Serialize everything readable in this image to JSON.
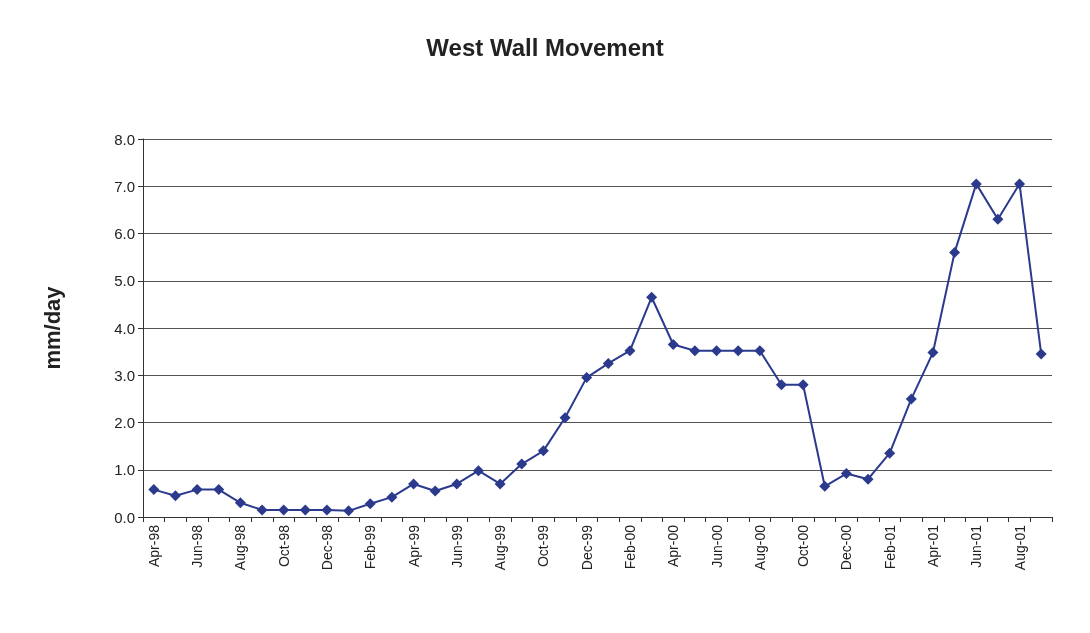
{
  "chart_data": {
    "type": "line",
    "title": "West Wall Movement",
    "ylabel": "mm/day",
    "categories": [
      "Apr-98",
      null,
      "Jun-98",
      null,
      "Aug-98",
      null,
      "Oct-98",
      null,
      "Dec-98",
      null,
      "Feb-99",
      null,
      "Apr-99",
      null,
      "Jun-99",
      null,
      "Aug-99",
      null,
      "Oct-99",
      null,
      "Dec-99",
      null,
      "Feb-00",
      null,
      "Apr-00",
      null,
      "Jun-00",
      null,
      "Aug-00",
      null,
      "Oct-00",
      null,
      "Dec-00",
      null,
      "Feb-01",
      null,
      "Apr-01",
      null,
      "Jun-01",
      null,
      "Aug-01",
      null
    ],
    "series": [
      {
        "color": "#2b3a8c",
        "values": [
          0.58,
          0.45,
          0.58,
          0.58,
          0.3,
          0.15,
          0.15,
          0.15,
          0.15,
          0.13,
          0.28,
          0.42,
          0.7,
          0.55,
          0.7,
          0.98,
          0.7,
          1.12,
          1.4,
          2.1,
          2.95,
          3.25,
          3.52,
          4.65,
          3.65,
          3.52,
          3.52,
          3.52,
          3.52,
          2.8,
          2.8,
          0.65,
          0.92,
          0.8,
          1.35,
          2.5,
          3.48,
          5.6,
          7.05,
          6.3,
          7.05,
          3.45
        ]
      }
    ],
    "ylim": [
      0,
      8
    ],
    "yticks": [
      {
        "value": 0,
        "label": "0.0"
      },
      {
        "value": 1,
        "label": "1.0"
      },
      {
        "value": 2,
        "label": "2.0"
      },
      {
        "value": 3,
        "label": "3.0"
      },
      {
        "value": 4,
        "label": "4.0"
      },
      {
        "value": 5,
        "label": "5.0"
      },
      {
        "value": 6,
        "label": "6.0"
      },
      {
        "value": 7,
        "label": "7.0"
      },
      {
        "value": 8,
        "label": "8.0"
      }
    ],
    "grid": true,
    "marker": "diamond",
    "line_style": "solid"
  }
}
